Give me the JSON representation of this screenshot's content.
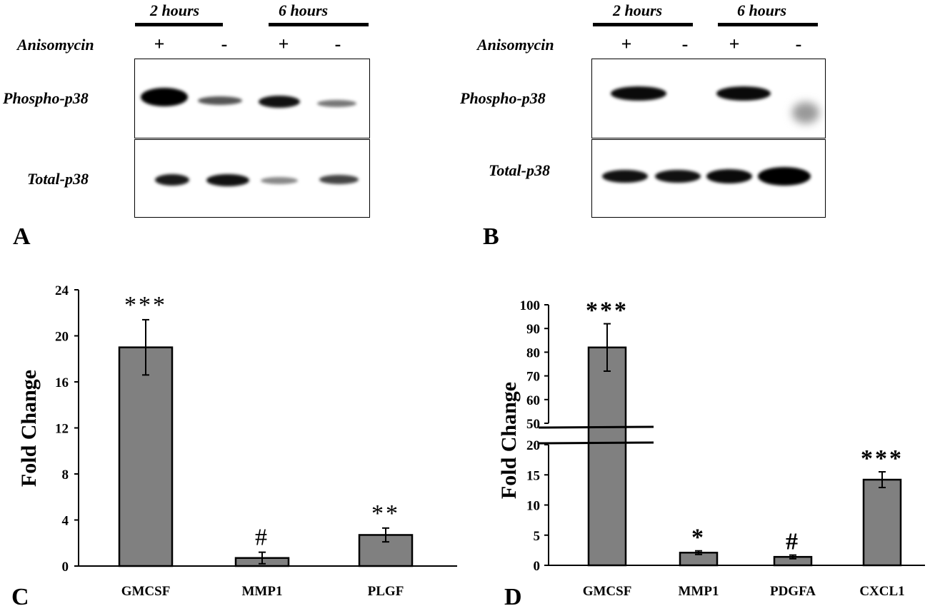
{
  "panels": {
    "A": {
      "letter": "A",
      "time_labels": [
        "2 hours",
        "6 hours"
      ],
      "treatment_label": "Anisomycin",
      "signs": [
        "+",
        "-",
        "+",
        "-"
      ],
      "rows": [
        "Phospho-p38",
        "Total-p38"
      ]
    },
    "B": {
      "letter": "B",
      "time_labels": [
        "2 hours",
        "6 hours"
      ],
      "treatment_label": "Anisomycin",
      "signs": [
        "+",
        "-",
        "+",
        "-"
      ],
      "rows": [
        "Phospho-p38",
        "Total-p38"
      ]
    },
    "C": {
      "letter": "C"
    },
    "D": {
      "letter": "D"
    }
  },
  "chart_data": [
    {
      "type": "bar",
      "panel": "C",
      "categories": [
        "GMCSF",
        "MMP1",
        "PLGF"
      ],
      "values": [
        19.0,
        0.7,
        2.7
      ],
      "errors": [
        2.4,
        0.5,
        0.6
      ],
      "annotations": [
        "***",
        "#",
        "**"
      ],
      "ylabel": "Fold Change",
      "ylim": [
        0,
        24
      ],
      "yticks": [
        "0",
        "4",
        "8",
        "12",
        "16",
        "20",
        "24"
      ],
      "bar_color": "#808080"
    },
    {
      "type": "bar",
      "panel": "D",
      "categories": [
        "GMCSF",
        "MMP1",
        "PDGFA",
        "CXCL1"
      ],
      "values": [
        82,
        2.1,
        1.4,
        14.2
      ],
      "errors": [
        10,
        0.3,
        0.3,
        1.3
      ],
      "annotations": [
        "***",
        "*",
        "#",
        "***"
      ],
      "ylabel": "Fold Change",
      "broken_axis": true,
      "ylim_lower": [
        0,
        20
      ],
      "ylim_upper": [
        50,
        100
      ],
      "yticks_lower": [
        "0",
        "5",
        "10",
        "15",
        "20"
      ],
      "yticks_upper": [
        "50",
        "60",
        "70",
        "80",
        "90",
        "100"
      ],
      "bar_color": "#808080"
    }
  ]
}
